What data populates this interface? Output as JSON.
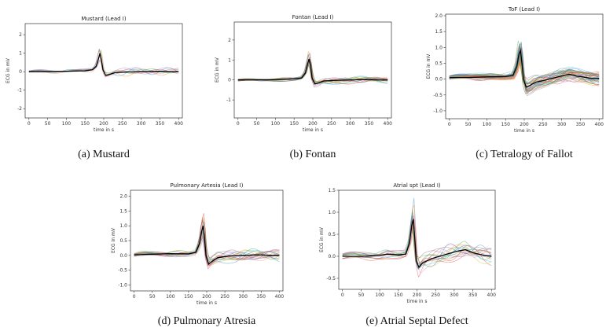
{
  "chart_data": [
    {
      "type": "line",
      "title": "Mustard (Lead I)",
      "caption": "(a) Mustard",
      "xlabel": "time in s",
      "ylabel": "ECG in mV",
      "xlim": [
        -10,
        410
      ],
      "ylim": [
        -2.5,
        2.6
      ],
      "xticks": [
        0,
        50,
        100,
        150,
        200,
        250,
        300,
        350,
        400
      ],
      "yticks": [
        -2,
        -1,
        0,
        1,
        2
      ],
      "mean_series": {
        "name": "",
        "x": [
          0,
          50,
          100,
          150,
          170,
          180,
          186,
          190,
          194,
          198,
          205,
          215,
          230,
          260,
          300,
          340,
          380,
          400
        ],
        "y": [
          0.0,
          0.0,
          0.02,
          0.05,
          0.1,
          0.3,
          0.7,
          1.0,
          0.6,
          0.1,
          -0.2,
          -0.15,
          -0.05,
          -0.02,
          0.0,
          0.02,
          0.0,
          0.0
        ]
      },
      "trace_count": 8,
      "trace_colors": [
        "#1f77b4",
        "#ff7f0e",
        "#2ca02c",
        "#d62728",
        "#9467bd",
        "#8c564b",
        "#e377c2",
        "#17becf"
      ]
    },
    {
      "type": "line",
      "title": "Fontan (Lead I)",
      "caption": "(b) Fontan",
      "xlabel": "time in s",
      "ylabel": "ECG in mV",
      "xlim": [
        -10,
        410
      ],
      "ylim": [
        -1.9,
        2.9
      ],
      "xticks": [
        0,
        50,
        100,
        150,
        200,
        250,
        300,
        350,
        400
      ],
      "yticks": [
        -1,
        0,
        1,
        2
      ],
      "mean_series": {
        "name": "",
        "x": [
          0,
          50,
          100,
          150,
          170,
          180,
          186,
          190,
          194,
          198,
          205,
          215,
          230,
          260,
          300,
          340,
          380,
          400
        ],
        "y": [
          0.0,
          0.0,
          0.02,
          0.05,
          0.1,
          0.35,
          0.8,
          1.05,
          0.7,
          0.1,
          -0.2,
          -0.15,
          -0.05,
          -0.02,
          0.0,
          0.02,
          0.0,
          0.0
        ]
      },
      "trace_count": 14,
      "trace_colors": [
        "#1f77b4",
        "#ff7f0e",
        "#2ca02c",
        "#d62728",
        "#9467bd",
        "#8c564b",
        "#e377c2",
        "#7f7f7f",
        "#bcbd22",
        "#17becf"
      ]
    },
    {
      "type": "line",
      "title": "ToF (Lead I)",
      "caption": "(c) Tetralogy of Fallot",
      "xlabel": "time in s",
      "ylabel": "ECG in mV",
      "xlim": [
        -10,
        410
      ],
      "ylim": [
        -1.25,
        2.05
      ],
      "xticks": [
        0,
        50,
        100,
        150,
        200,
        250,
        300,
        350,
        400
      ],
      "yticks": [
        -1.0,
        -0.5,
        0.0,
        0.5,
        1.0,
        1.5,
        2.0
      ],
      "mean_series": {
        "name": "",
        "x": [
          0,
          50,
          100,
          150,
          170,
          180,
          186,
          190,
          194,
          198,
          205,
          215,
          230,
          260,
          300,
          320,
          340,
          380,
          400
        ],
        "y": [
          0.05,
          0.05,
          0.07,
          0.08,
          0.12,
          0.4,
          0.8,
          0.9,
          0.5,
          0.0,
          -0.25,
          -0.2,
          -0.1,
          -0.02,
          0.1,
          0.15,
          0.1,
          0.02,
          0.02
        ]
      },
      "trace_count": 40,
      "trace_colors": [
        "#1f77b4",
        "#ff7f0e",
        "#2ca02c",
        "#d62728",
        "#9467bd",
        "#8c564b",
        "#e377c2",
        "#7f7f7f",
        "#bcbd22",
        "#17becf"
      ]
    },
    {
      "type": "line",
      "title": "Pulmonary Artesia (Lead I)",
      "caption": "(d) Pulmonary Atresia",
      "xlabel": "time in s",
      "ylabel": "ECG in mV",
      "xlim": [
        -10,
        410
      ],
      "ylim": [
        -1.2,
        2.2
      ],
      "xticks": [
        0,
        50,
        100,
        150,
        200,
        250,
        300,
        350,
        400
      ],
      "yticks": [
        -1.0,
        -0.5,
        0.0,
        0.5,
        1.0,
        1.5,
        2.0
      ],
      "mean_series": {
        "name": "",
        "x": [
          0,
          50,
          100,
          150,
          170,
          180,
          186,
          190,
          194,
          198,
          205,
          215,
          230,
          260,
          300,
          340,
          380,
          400
        ],
        "y": [
          0.02,
          0.04,
          0.06,
          0.05,
          0.1,
          0.4,
          0.8,
          1.0,
          0.6,
          0.0,
          -0.3,
          -0.2,
          -0.08,
          -0.02,
          0.0,
          0.02,
          0.0,
          0.0
        ]
      },
      "trace_count": 18,
      "trace_colors": [
        "#1f77b4",
        "#ff7f0e",
        "#2ca02c",
        "#d62728",
        "#9467bd",
        "#8c564b",
        "#e377c2",
        "#7f7f7f",
        "#bcbd22",
        "#17becf"
      ]
    },
    {
      "type": "line",
      "title": "Atrial spt (Lead I)",
      "caption": "(e) Atrial Septal Defect",
      "xlabel": "time in s",
      "ylabel": "ECG in mV",
      "xlim": [
        -10,
        410
      ],
      "ylim": [
        -0.75,
        1.5
      ],
      "xticks": [
        0,
        50,
        100,
        150,
        200,
        250,
        300,
        350,
        400
      ],
      "yticks": [
        -0.5,
        0.0,
        0.5,
        1.0,
        1.5
      ],
      "mean_series": {
        "name": "",
        "x": [
          0,
          50,
          100,
          120,
          150,
          170,
          180,
          186,
          190,
          194,
          198,
          205,
          215,
          240,
          280,
          310,
          330,
          350,
          380,
          400
        ],
        "y": [
          0.0,
          0.0,
          0.02,
          0.05,
          0.03,
          0.05,
          0.3,
          0.7,
          0.85,
          0.4,
          -0.1,
          -0.25,
          -0.15,
          -0.05,
          0.05,
          0.12,
          0.15,
          0.08,
          0.02,
          0.0
        ]
      },
      "trace_count": 16,
      "trace_colors": [
        "#1f77b4",
        "#ff7f0e",
        "#2ca02c",
        "#d62728",
        "#9467bd",
        "#8c564b",
        "#e377c2",
        "#7f7f7f",
        "#bcbd22",
        "#17becf"
      ]
    }
  ]
}
